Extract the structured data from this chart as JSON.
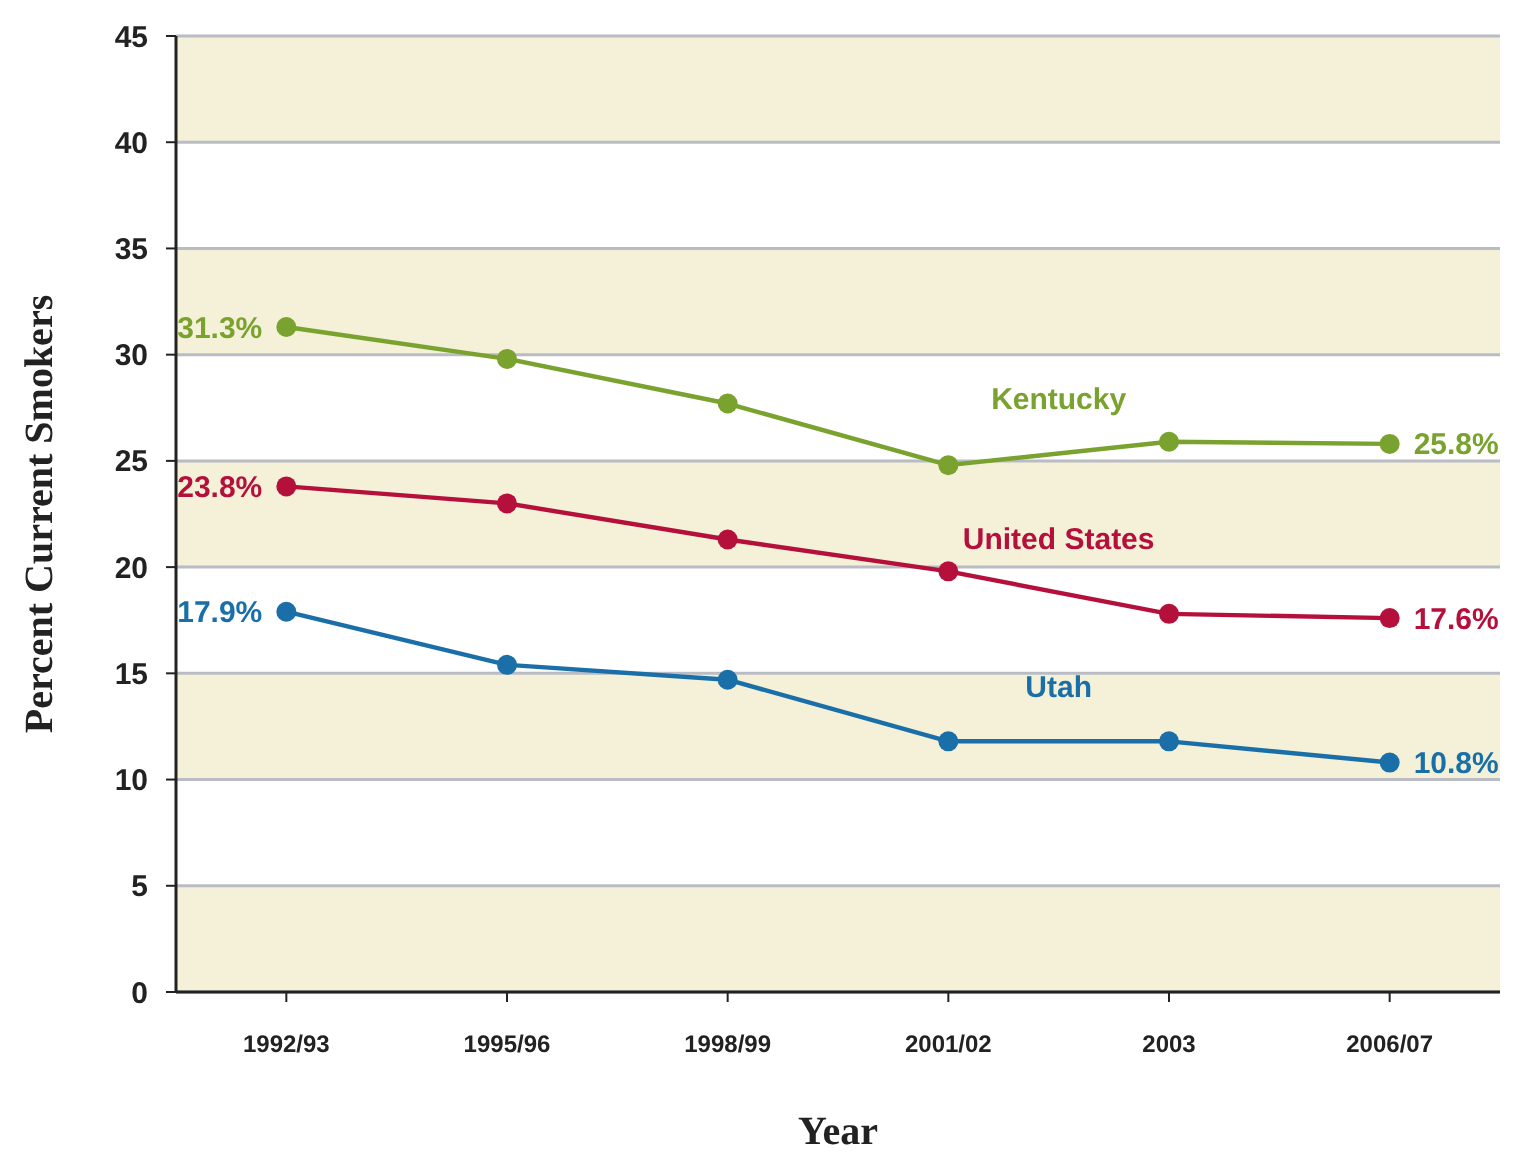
{
  "chart_data": {
    "type": "line",
    "xlabel": "Year",
    "ylabel": "Percent Current Smokers",
    "categories": [
      "1992/93",
      "1995/96",
      "1998/99",
      "2001/02",
      "2003",
      "2006/07"
    ],
    "ylim": [
      0,
      45
    ],
    "yticks": [
      0,
      5,
      10,
      15,
      20,
      25,
      30,
      35,
      40,
      45
    ],
    "grid": "y",
    "marker": "circle",
    "line_style": "solid",
    "series": [
      {
        "name": "Kentucky",
        "color": "#7aa22e",
        "values": [
          31.3,
          29.8,
          27.7,
          24.8,
          25.9,
          25.8
        ],
        "value_labels": [
          "31.3%",
          null,
          null,
          null,
          null,
          "25.8%"
        ]
      },
      {
        "name": "United States",
        "color": "#b5103c",
        "values": [
          23.8,
          23.0,
          21.3,
          19.8,
          17.8,
          17.6
        ],
        "value_labels": [
          "23.8%",
          null,
          null,
          null,
          null,
          "17.6%"
        ]
      },
      {
        "name": "Utah",
        "color": "#1a6fa8",
        "values": [
          17.9,
          15.4,
          14.7,
          11.8,
          11.8,
          10.8
        ],
        "value_labels": [
          "17.9%",
          null,
          null,
          null,
          null,
          "10.8%"
        ]
      }
    ]
  }
}
